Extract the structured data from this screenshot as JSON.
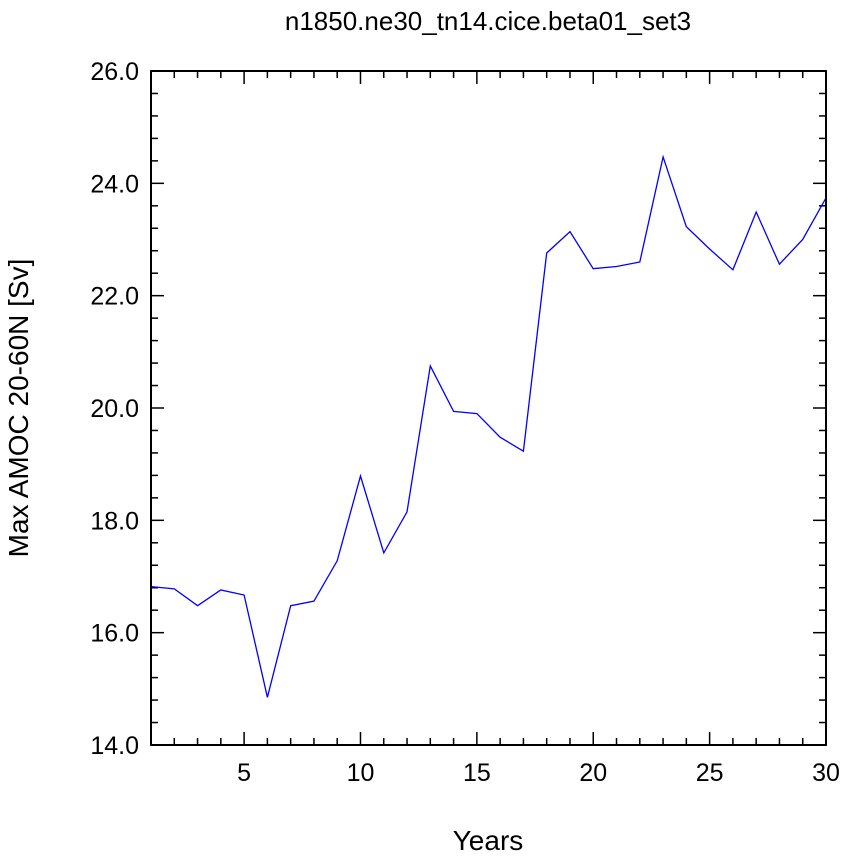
{
  "chart_data": {
    "type": "line",
    "title": "n1850.ne30_tn14.cice.beta01_set3",
    "xlabel": "Years",
    "ylabel": "Max AMOC 20-60N [Sv]",
    "xlim": [
      1,
      30
    ],
    "ylim": [
      14.0,
      26.0
    ],
    "x_ticks": [
      5,
      10,
      15,
      20,
      25,
      30
    ],
    "x_tick_labels": [
      "5",
      "10",
      "15",
      "20",
      "25",
      "30"
    ],
    "y_ticks": [
      14.0,
      16.0,
      18.0,
      20.0,
      22.0,
      24.0,
      26.0
    ],
    "y_tick_labels": [
      "14.0",
      "16.0",
      "18.0",
      "20.0",
      "22.0",
      "24.0",
      "26.0"
    ],
    "grid": false,
    "series": [
      {
        "color": "#0000ff",
        "x": [
          1,
          2,
          3,
          4,
          5,
          6,
          7,
          8,
          9,
          10,
          11,
          12,
          13,
          14,
          15,
          16,
          17,
          18,
          19,
          20,
          21,
          22,
          23,
          24,
          25,
          26,
          27,
          28,
          29,
          30
        ],
        "values": [
          16.82,
          16.78,
          16.48,
          16.76,
          16.67,
          14.85,
          16.48,
          16.56,
          17.28,
          18.79,
          17.42,
          18.15,
          20.75,
          19.94,
          19.9,
          19.48,
          19.23,
          22.76,
          23.14,
          22.48,
          22.52,
          22.6,
          24.47,
          23.23,
          22.83,
          22.46,
          23.49,
          22.56,
          23.0,
          23.74
        ]
      }
    ]
  }
}
